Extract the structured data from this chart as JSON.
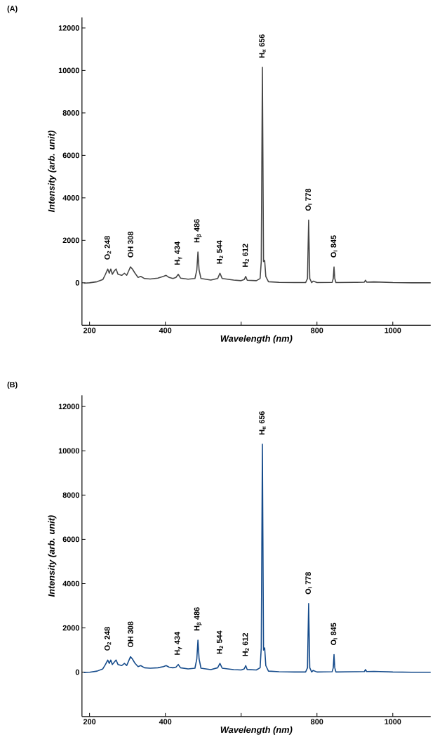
{
  "chart_data": [
    {
      "type": "line",
      "title": "(A)",
      "xlabel": "Wavelength (nm)",
      "ylabel": "Intensity (arb. unit)",
      "xlim": [
        180,
        1100
      ],
      "ylim": [
        -2000,
        12500
      ],
      "xticks": [
        200,
        400,
        {
          "value": 600,
          "label": null
        },
        800,
        1000
      ],
      "yticks": [
        0,
        2000,
        4000,
        6000,
        8000,
        10000,
        12000
      ],
      "x": [
        185,
        200,
        220,
        235,
        242,
        248,
        252,
        256,
        260,
        265,
        270,
        275,
        285,
        292,
        298,
        303,
        308,
        313,
        320,
        328,
        335,
        345,
        360,
        380,
        395,
        402,
        410,
        420,
        428,
        434,
        440,
        460,
        478,
        483,
        486,
        489,
        494,
        520,
        538,
        544,
        550,
        580,
        600,
        608,
        612,
        616,
        640,
        650,
        653,
        656,
        659,
        662,
        665,
        672,
        700,
        740,
        770,
        775,
        778,
        781,
        786,
        790,
        800,
        840,
        843,
        845,
        847,
        850,
        900,
        925,
        928,
        931,
        950,
        1000,
        1050,
        1100
      ],
      "series": [
        {
          "color": "#464646",
          "values": [
            -20,
            0,
            50,
            150,
            400,
            650,
            450,
            650,
            400,
            550,
            650,
            400,
            350,
            450,
            350,
            550,
            750,
            650,
            450,
            250,
            300,
            200,
            180,
            220,
            300,
            350,
            250,
            200,
            250,
            400,
            220,
            170,
            200,
            600,
            1450,
            600,
            200,
            130,
            200,
            450,
            200,
            130,
            100,
            150,
            300,
            120,
            100,
            200,
            1000,
            10150,
            1000,
            1050,
            300,
            50,
            20,
            10,
            10,
            200,
            2950,
            200,
            10,
            80,
            10,
            20,
            200,
            750,
            200,
            10,
            20,
            30,
            120,
            30,
            40,
            10,
            0,
            0
          ]
        }
      ],
      "annotations": [
        {
          "text": "O$_{2}$ 248",
          "x": 248,
          "y": 650
        },
        {
          "text": "OH 308",
          "x": 308,
          "y": 750
        },
        {
          "text": "H$_{γ}$ 434",
          "x": 434,
          "y": 400
        },
        {
          "text": "H$_{β}$ 486",
          "x": 486,
          "y": 1450
        },
        {
          "text": "H$_{2}$ 544",
          "x": 544,
          "y": 450
        },
        {
          "text": "H$_{2}$ 612",
          "x": 612,
          "y": 300
        },
        {
          "text": "H$_{α}$ 656",
          "x": 656,
          "y": 10150
        },
        {
          "text": "O$_{I}$ 778",
          "x": 778,
          "y": 2950
        },
        {
          "text": "O$_{I}$ 845",
          "x": 845,
          "y": 750
        }
      ]
    },
    {
      "type": "line",
      "title": "(B)",
      "xlabel": "Wavelength (nm)",
      "ylabel": "Intensity (arb. unit)",
      "xlim": [
        180,
        1100
      ],
      "ylim": [
        -2000,
        12500
      ],
      "xticks": [
        200,
        400,
        {
          "value": 600,
          "label": null
        },
        800,
        1000
      ],
      "yticks": [
        0,
        2000,
        4000,
        6000,
        8000,
        10000,
        12000
      ],
      "x": [
        185,
        200,
        220,
        235,
        242,
        248,
        252,
        256,
        260,
        265,
        270,
        275,
        285,
        292,
        298,
        303,
        308,
        313,
        320,
        328,
        335,
        345,
        360,
        380,
        395,
        402,
        410,
        420,
        428,
        434,
        440,
        460,
        478,
        483,
        486,
        489,
        494,
        520,
        538,
        544,
        550,
        580,
        600,
        608,
        612,
        616,
        640,
        650,
        653,
        656,
        659,
        662,
        665,
        672,
        700,
        740,
        770,
        775,
        778,
        781,
        786,
        790,
        800,
        840,
        843,
        845,
        847,
        850,
        900,
        925,
        928,
        931,
        950,
        1000,
        1050,
        1100
      ],
      "series": [
        {
          "color": "#154b8b",
          "values": [
            -20,
            0,
            50,
            150,
            350,
            550,
            400,
            550,
            350,
            450,
            550,
            350,
            300,
            400,
            300,
            500,
            700,
            600,
            400,
            250,
            300,
            200,
            180,
            200,
            250,
            300,
            230,
            200,
            230,
            350,
            200,
            150,
            180,
            600,
            1450,
            600,
            180,
            120,
            200,
            400,
            180,
            120,
            100,
            150,
            300,
            120,
            100,
            200,
            1100,
            10300,
            1000,
            1100,
            300,
            50,
            20,
            10,
            10,
            200,
            3100,
            200,
            10,
            80,
            10,
            20,
            200,
            800,
            200,
            10,
            20,
            30,
            120,
            30,
            40,
            10,
            0,
            0
          ]
        }
      ],
      "annotations": [
        {
          "text": "O$_{2}$ 248",
          "x": 248,
          "y": 550
        },
        {
          "text": "OH 308",
          "x": 308,
          "y": 700
        },
        {
          "text": "H$_{γ}$ 434",
          "x": 434,
          "y": 350
        },
        {
          "text": "H$_{β}$ 486",
          "x": 486,
          "y": 1450
        },
        {
          "text": "H$_{2}$ 544",
          "x": 544,
          "y": 400
        },
        {
          "text": "H$_{2}$ 612",
          "x": 612,
          "y": 300
        },
        {
          "text": "H$_{α}$ 656",
          "x": 656,
          "y": 10300
        },
        {
          "text": "O$_{I}$ 778",
          "x": 778,
          "y": 3100
        },
        {
          "text": "O$_{I}$ 845",
          "x": 845,
          "y": 800
        }
      ]
    }
  ]
}
